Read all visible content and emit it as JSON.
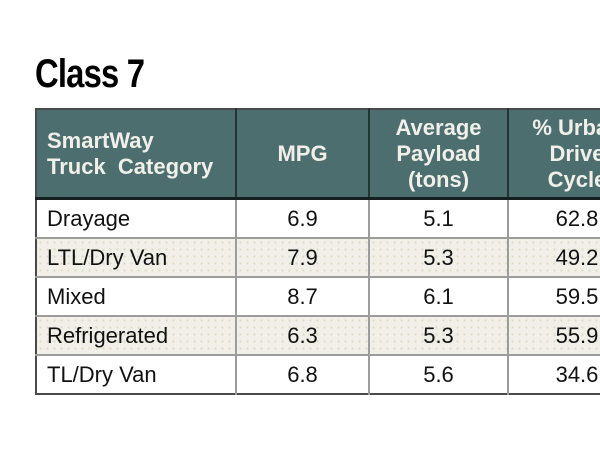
{
  "title": "Class 7",
  "table": {
    "columns": [
      {
        "label": "SmartWay\nTruck  Category"
      },
      {
        "label": "MPG"
      },
      {
        "label": "Average\nPayload\n(tons)"
      },
      {
        "label": "% Urban\nDrive\nCycle"
      }
    ],
    "rows": [
      {
        "category": "Drayage",
        "mpg": "6.9",
        "payload_tons": "5.1",
        "urban_drive_cycle_pct": "62.8"
      },
      {
        "category": "LTL/Dry Van",
        "mpg": "7.9",
        "payload_tons": "5.3",
        "urban_drive_cycle_pct": "49.2"
      },
      {
        "category": "Mixed",
        "mpg": "8.7",
        "payload_tons": "6.1",
        "urban_drive_cycle_pct": "59.5"
      },
      {
        "category": "Refrigerated",
        "mpg": "6.3",
        "payload_tons": "5.3",
        "urban_drive_cycle_pct": "55.9"
      },
      {
        "category": "TL/Dry Van",
        "mpg": "6.8",
        "payload_tons": "5.6",
        "urban_drive_cycle_pct": "34.6"
      }
    ]
  },
  "colors": {
    "header_bg": "#4d6e6e",
    "header_text": "#f0efe9",
    "stripe_bg": "#f1f0e8",
    "grid_line": "#9c9c9c",
    "header_divider": "#263333",
    "outer_border": "#4a4a4a"
  }
}
